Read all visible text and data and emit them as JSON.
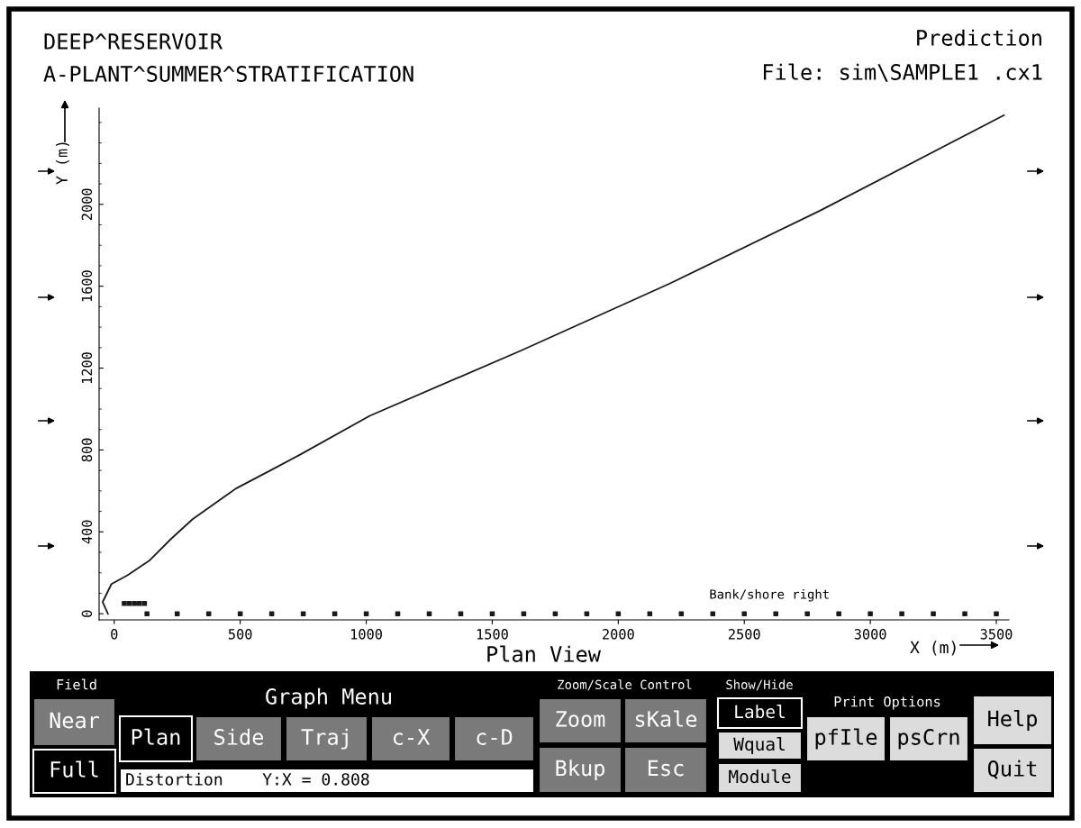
{
  "chart_data": {
    "type": "line",
    "title": "DEEP^RESERVOIR",
    "subtitle": "A-PLANT^SUMMER^STRATIFICATION",
    "xlabel": "X (m)",
    "ylabel": "Y (m)",
    "xlim": [
      -60,
      3550
    ],
    "ylim": [
      -30,
      2470
    ],
    "xticks": [
      0,
      500,
      1000,
      1500,
      2000,
      2500,
      3000,
      3500
    ],
    "yticks": [
      0,
      400,
      800,
      1200,
      1600,
      2000
    ],
    "grid": false,
    "legend": false,
    "series": [
      {
        "color": "#1a1a1a",
        "x": [
          -25,
          -46,
          -11,
          54,
          139,
          225,
          311,
          482,
          618,
          739,
          1014,
          1611,
          2204,
          2800,
          3530
        ],
        "values": [
          0,
          57,
          145,
          189,
          259,
          365,
          462,
          611,
          699,
          778,
          967,
          1284,
          1613,
          1969,
          2435
        ]
      },
      {
        "color": "#1a1a1a",
        "type": "scatter",
        "marker": "square",
        "x": [
          130,
          250,
          375,
          500,
          625,
          750,
          875,
          1000,
          1125,
          1250,
          1375,
          1500,
          1625,
          1750,
          1875,
          2000,
          2125,
          2250,
          2375,
          2500,
          2625,
          2750,
          2875,
          3000,
          3125,
          3250,
          3375,
          3500
        ],
        "values": [
          0,
          0,
          0,
          0,
          0,
          0,
          0,
          0,
          0,
          0,
          0,
          0,
          0,
          0,
          0,
          0,
          0,
          0,
          0,
          0,
          0,
          0,
          0,
          0,
          0,
          0,
          0,
          0
        ]
      },
      {
        "color": "#1a1a1a",
        "type": "scatter",
        "marker": "square",
        "x": [
          40,
          60,
          80,
          100,
          120
        ],
        "values": [
          50,
          50,
          50,
          50,
          50
        ]
      }
    ],
    "annotations": [
      "Prediction",
      "File: sim\\SAMPLE1 .cx1",
      "Plan View",
      {
        "text": "Bank/shore right",
        "x": 2600,
        "y": 0
      },
      "Field",
      "Near",
      "Full",
      "Graph Menu",
      "Plan",
      "Side",
      "Traj",
      "c-X",
      "c-D",
      "Distortion    Y:X = 0.808",
      "Zoom/Scale Control",
      "Zoom",
      "sKale",
      "Bkup",
      "Esc",
      "Show/Hide",
      "Label",
      "Wqual",
      "Module",
      "Print Options",
      "pfIle",
      "psCrn",
      "Help",
      "Quit"
    ]
  }
}
